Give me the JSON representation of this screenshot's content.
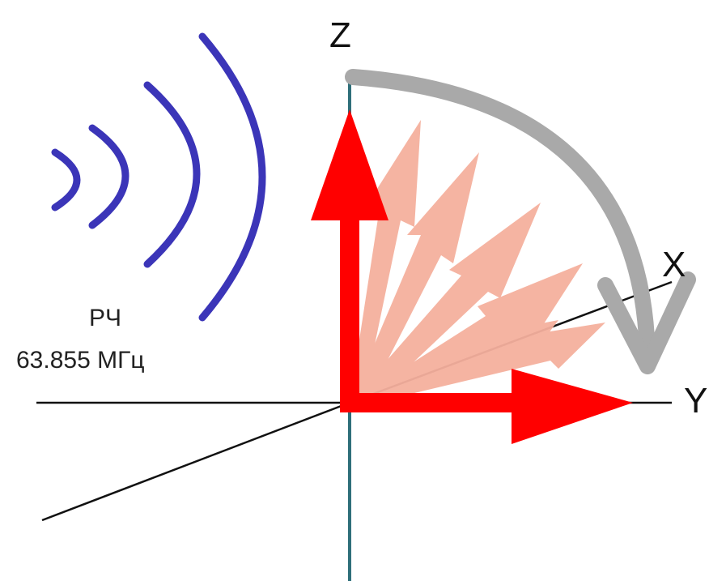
{
  "labels": {
    "z_axis": "Z",
    "x_axis": "X",
    "y_axis": "Y",
    "rf_title": "РЧ",
    "rf_frequency": "63.855 МГц"
  },
  "colors": {
    "primary_vector": "#ff0000",
    "precession_vectors": "#f5b09e",
    "rotation_arrow": "#a9a9a9",
    "rf_waves": "#3b35b8",
    "axis_lines": "#111111",
    "vertical_axis": "#2f6f7a"
  },
  "icons": {
    "rf_waves": "rf-wave-arcs",
    "rotation": "curved-arrow"
  }
}
